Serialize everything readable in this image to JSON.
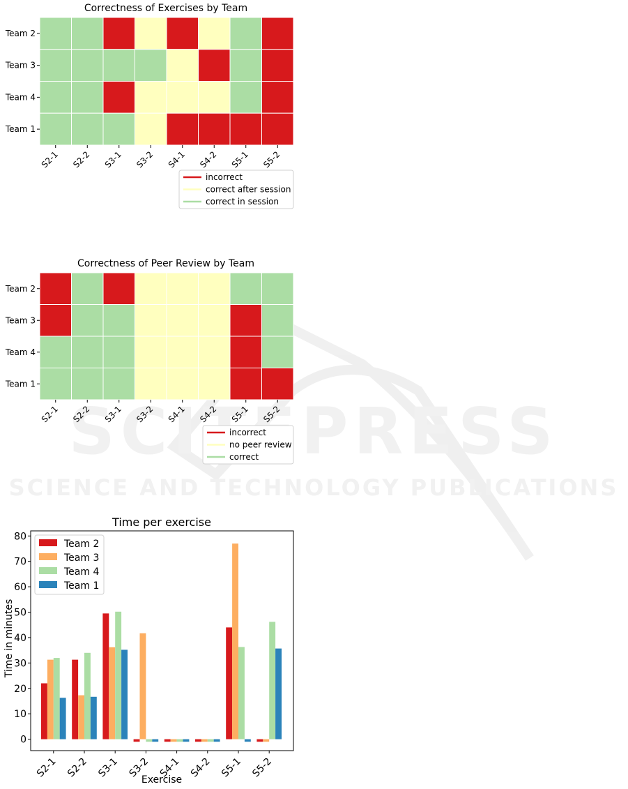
{
  "watermark": {
    "main": "SCITEPRESS",
    "sub": "SCIENCE AND TECHNOLOGY PUBLICATIONS"
  },
  "colors": {
    "incorrect": "#d7191c",
    "correct_after_session": "#ffffbf",
    "correct_in_session": "#abdda4",
    "team2": "#d7191c",
    "team3": "#fdae61",
    "team4": "#abdda4",
    "team1": "#2b83ba"
  },
  "chart_data": [
    {
      "type": "heatmap",
      "title": "Correctness of Exercises by Team",
      "columns": [
        "S2-1",
        "S2-2",
        "S3-1",
        "S3-2",
        "S4-1",
        "S4-2",
        "S5-1",
        "S5-2"
      ],
      "rows": [
        "Team 2",
        "Team 3",
        "Team 4",
        "Team 1"
      ],
      "cells": [
        [
          "correct in session",
          "correct in session",
          "incorrect",
          "correct after session",
          "incorrect",
          "correct after session",
          "correct in session",
          "incorrect"
        ],
        [
          "correct in session",
          "correct in session",
          "correct in session",
          "correct in session",
          "correct after session",
          "incorrect",
          "correct in session",
          "incorrect"
        ],
        [
          "correct in session",
          "correct in session",
          "incorrect",
          "correct after session",
          "correct after session",
          "correct after session",
          "correct in session",
          "incorrect"
        ],
        [
          "correct in session",
          "correct in session",
          "correct in session",
          "correct after session",
          "incorrect",
          "incorrect",
          "incorrect",
          "incorrect"
        ]
      ],
      "legend": [
        "incorrect",
        "correct after session",
        "correct in session"
      ],
      "legend_colors": [
        "#d7191c",
        "#ffffbf",
        "#abdda4"
      ]
    },
    {
      "type": "heatmap",
      "title": "Correctness of Peer Review by Team",
      "columns": [
        "S2-1",
        "S2-2",
        "S3-1",
        "S3-2",
        "S4-1",
        "S4-2",
        "S5-1",
        "S5-2"
      ],
      "rows": [
        "Team 2",
        "Team 3",
        "Team 4",
        "Team 1"
      ],
      "cells": [
        [
          "incorrect",
          "correct",
          "incorrect",
          "no peer review",
          "no peer review",
          "no peer review",
          "correct",
          "correct"
        ],
        [
          "incorrect",
          "correct",
          "correct",
          "no peer review",
          "no peer review",
          "no peer review",
          "incorrect",
          "correct"
        ],
        [
          "correct",
          "correct",
          "correct",
          "no peer review",
          "no peer review",
          "no peer review",
          "incorrect",
          "correct"
        ],
        [
          "correct",
          "correct",
          "correct",
          "no peer review",
          "no peer review",
          "no peer review",
          "incorrect",
          "incorrect"
        ]
      ],
      "legend": [
        "incorrect",
        "no peer review",
        "correct"
      ],
      "legend_colors": [
        "#d7191c",
        "#ffffbf",
        "#abdda4"
      ]
    },
    {
      "type": "bar",
      "title": "Time per exercise",
      "xlabel": "Exercise",
      "ylabel": "Time in minutes",
      "categories": [
        "S2-1",
        "S2-2",
        "S3-1",
        "S3-2",
        "S4-1",
        "S4-2",
        "S5-1",
        "S5-2"
      ],
      "ylim": [
        -4.5,
        82
      ],
      "yticks": [
        0,
        10,
        20,
        30,
        40,
        50,
        60,
        70,
        80
      ],
      "legend_position": "top-left",
      "series": [
        {
          "name": "Team 2",
          "color": "#d7191c",
          "values": [
            22,
            31.3,
            49.5,
            -1,
            -1,
            -1,
            44,
            -1
          ]
        },
        {
          "name": "Team 3",
          "color": "#fdae61",
          "values": [
            31.3,
            17.3,
            36.2,
            41.7,
            -1,
            -1,
            77,
            -1
          ]
        },
        {
          "name": "Team 4",
          "color": "#abdda4",
          "values": [
            32,
            34,
            50.2,
            -1,
            -1,
            -1,
            36.3,
            46.2
          ]
        },
        {
          "name": "Team 1",
          "color": "#2b83ba",
          "values": [
            16.3,
            16.7,
            35.2,
            -1,
            -1,
            -1,
            -1,
            35.7
          ]
        }
      ]
    }
  ]
}
